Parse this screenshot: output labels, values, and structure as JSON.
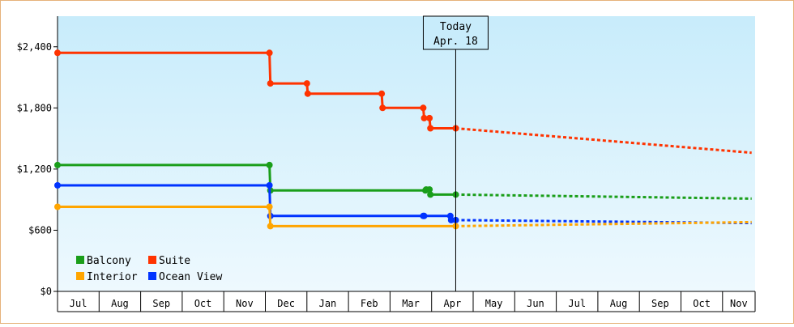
{
  "chart_data": {
    "type": "line",
    "title": "",
    "xlabel": "",
    "ylabel": "",
    "ylim": [
      0,
      2700
    ],
    "y_ticks": [
      0,
      600,
      1200,
      1800,
      2400
    ],
    "y_tick_labels": [
      "$0",
      "$600",
      "$1,200",
      "$1,800",
      "$2,400"
    ],
    "x_tick_labels": [
      "Jul",
      "Aug",
      "Sep",
      "Oct",
      "Nov",
      "Dec",
      "Jan",
      "Feb",
      "Mar",
      "Apr",
      "May",
      "Jun",
      "Jul",
      "Aug",
      "Sep",
      "Oct",
      "Nov"
    ],
    "grid": false,
    "today": {
      "label_line1": "Today",
      "label_line2": "Apr. 18",
      "x": 9.58
    },
    "legend": [
      {
        "name": "Balcony",
        "color": "#1a9e1a"
      },
      {
        "name": "Suite",
        "color": "#ff3300"
      },
      {
        "name": "Interior",
        "color": "#ffa500"
      },
      {
        "name": "Ocean View",
        "color": "#0033ff"
      }
    ],
    "series": [
      {
        "name": "Suite",
        "color": "#ff3300",
        "history": [
          [
            0,
            2340
          ],
          [
            5.1,
            2340
          ],
          [
            5.12,
            2040
          ],
          [
            6.0,
            2040
          ],
          [
            6.02,
            1940
          ],
          [
            7.8,
            1940
          ],
          [
            7.82,
            1800
          ],
          [
            8.8,
            1800
          ],
          [
            8.82,
            1700
          ],
          [
            8.95,
            1700
          ],
          [
            8.97,
            1600
          ],
          [
            9.58,
            1600
          ]
        ],
        "forecast": [
          [
            9.58,
            1600
          ],
          [
            16.7,
            1360
          ]
        ]
      },
      {
        "name": "Balcony",
        "color": "#1a9e1a",
        "history": [
          [
            0,
            1240
          ],
          [
            5.1,
            1240
          ],
          [
            5.12,
            990
          ],
          [
            8.85,
            990
          ],
          [
            8.87,
            1000
          ],
          [
            8.95,
            1000
          ],
          [
            8.97,
            950
          ],
          [
            9.58,
            950
          ]
        ],
        "forecast": [
          [
            9.58,
            950
          ],
          [
            16.7,
            910
          ]
        ]
      },
      {
        "name": "Ocean View",
        "color": "#0033ff",
        "history": [
          [
            0,
            1040
          ],
          [
            5.1,
            1040
          ],
          [
            5.12,
            740
          ],
          [
            8.8,
            740
          ],
          [
            8.82,
            740
          ],
          [
            9.45,
            740
          ],
          [
            9.47,
            700
          ],
          [
            9.58,
            700
          ]
        ],
        "forecast": [
          [
            9.58,
            700
          ],
          [
            16.7,
            670
          ]
        ]
      },
      {
        "name": "Interior",
        "color": "#ffa500",
        "history": [
          [
            0,
            830
          ],
          [
            5.1,
            830
          ],
          [
            5.12,
            640
          ],
          [
            9.58,
            640
          ]
        ],
        "forecast": [
          [
            9.58,
            640
          ],
          [
            16.7,
            680
          ]
        ]
      }
    ]
  }
}
